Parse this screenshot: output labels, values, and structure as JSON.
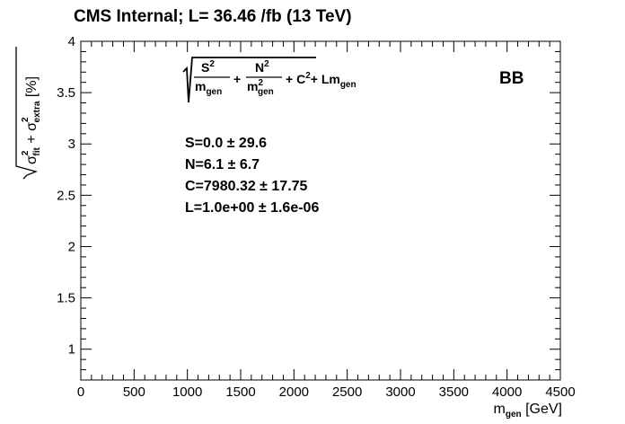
{
  "header": {
    "title": "CMS Internal; L= 36.46 /fb (13 TeV)"
  },
  "chart_data": {
    "type": "scatter",
    "title": "CMS Internal; L= 36.46 /fb (13 TeV)",
    "xlabel": "m_gen [GeV]",
    "ylabel": "√(σ²_fit + σ²_extra) [%]",
    "xlim": [
      0,
      4500
    ],
    "ylim": [
      0.7,
      4
    ],
    "x_ticks": [
      0,
      500,
      1000,
      1500,
      2000,
      2500,
      3000,
      3500,
      4000,
      4500
    ],
    "x_tick_labels": [
      "0",
      "500",
      "1000",
      "1500",
      "2000",
      "2500",
      "3000",
      "3500",
      "4000",
      "4500"
    ],
    "y_ticks": [
      1,
      1.5,
      2,
      2.5,
      3,
      3.5,
      4
    ],
    "y_tick_labels": [
      "1",
      "1.5",
      "2",
      "2.5",
      "3",
      "3.5",
      "4"
    ],
    "grid": false,
    "series": [],
    "annotations": {
      "region": "BB",
      "formula": {
        "s_num": "S",
        "s_sup": "2",
        "s_den": "m",
        "s_den_sub": "gen",
        "plus1": "+",
        "n_num": "N",
        "n_sup": "2",
        "n_den": "m",
        "n_den_sup": "2",
        "n_den_sub": "gen",
        "rest": "+ C",
        "rest_sup": "2",
        "rest2": "+ Lm",
        "rest2_sub": "gen"
      },
      "fit_params": [
        "S=0.0 ± 29.6",
        "N=6.1 ± 6.7",
        "C=7980.32 ± 17.75",
        "L=1.0e+00 ± 1.6e-06"
      ]
    },
    "axis_label_parts": {
      "x_main": "m",
      "x_sub": "gen",
      "x_unit": " [GeV]",
      "y_sigma1": "σ",
      "y_sup1": "2",
      "y_sub1": "fit",
      "y_plus": " + ",
      "y_sigma2": "σ",
      "y_sup2": "2",
      "y_sub2": "extra",
      "y_unit": " [%]"
    }
  }
}
